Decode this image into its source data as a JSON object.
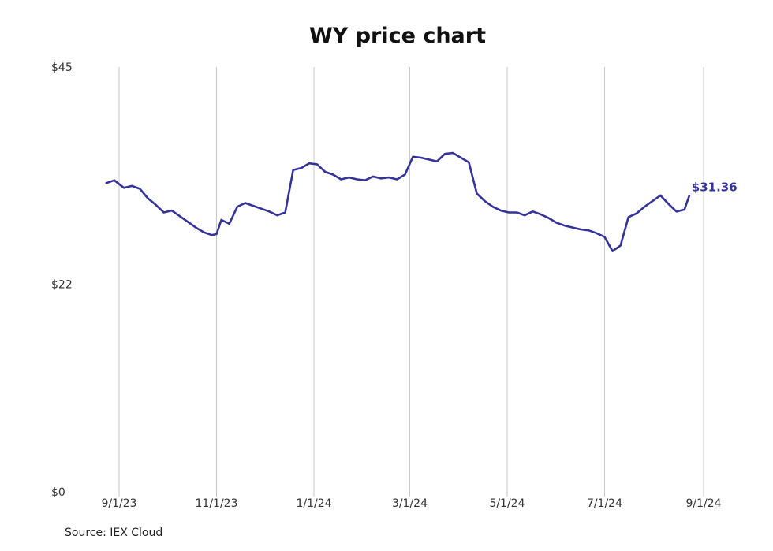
{
  "chart_data": {
    "type": "line",
    "title": "WY price chart",
    "source": "Source: IEX Cloud",
    "ylim": [
      0,
      45
    ],
    "y_ticks": [
      {
        "value": 0,
        "label": "$0"
      },
      {
        "value": 22,
        "label": "$22"
      },
      {
        "value": 45,
        "label": "$45"
      }
    ],
    "x_ticks": [
      {
        "date": "2023-09-01",
        "label": "9/1/23"
      },
      {
        "date": "2023-11-01",
        "label": "11/1/23"
      },
      {
        "date": "2024-01-01",
        "label": "1/1/24"
      },
      {
        "date": "2024-03-01",
        "label": "3/1/24"
      },
      {
        "date": "2024-05-01",
        "label": "5/1/24"
      },
      {
        "date": "2024-07-01",
        "label": "7/1/24"
      },
      {
        "date": "2024-09-01",
        "label": "9/1/24"
      }
    ],
    "grid": "vertical",
    "line_color": "#33339a",
    "end_label": "$31.36",
    "series": [
      {
        "x": [
          "2023-08-24",
          "2023-08-29",
          "2023-09-04",
          "2023-09-09",
          "2023-09-14",
          "2023-09-19",
          "2023-09-24",
          "2023-09-29",
          "2023-10-04",
          "2023-10-09",
          "2023-10-14",
          "2023-10-19",
          "2023-10-24",
          "2023-10-29",
          "2023-11-01",
          "2023-11-04",
          "2023-11-09",
          "2023-11-14",
          "2023-11-19",
          "2023-11-24",
          "2023-11-29",
          "2023-12-04",
          "2023-12-09",
          "2023-12-14",
          "2023-12-19",
          "2023-12-24",
          "2023-12-29",
          "2024-01-03",
          "2024-01-08",
          "2024-01-13",
          "2024-01-18",
          "2024-01-23",
          "2024-01-28",
          "2024-02-02",
          "2024-02-07",
          "2024-02-12",
          "2024-02-17",
          "2024-02-22",
          "2024-02-27",
          "2024-03-03",
          "2024-03-08",
          "2024-03-13",
          "2024-03-18",
          "2024-03-23",
          "2024-03-28",
          "2024-04-02",
          "2024-04-07",
          "2024-04-12",
          "2024-04-17",
          "2024-04-22",
          "2024-04-27",
          "2024-05-02",
          "2024-05-07",
          "2024-05-12",
          "2024-05-17",
          "2024-05-22",
          "2024-05-27",
          "2024-06-01",
          "2024-06-06",
          "2024-06-11",
          "2024-06-16",
          "2024-06-21",
          "2024-06-26",
          "2024-07-01",
          "2024-07-06",
          "2024-07-11",
          "2024-07-16",
          "2024-07-21",
          "2024-07-26",
          "2024-07-31",
          "2024-08-05",
          "2024-08-10",
          "2024-08-15",
          "2024-08-20",
          "2024-08-23"
        ],
        "values": [
          32.7,
          33.0,
          32.2,
          32.4,
          32.1,
          31.1,
          30.4,
          29.6,
          29.8,
          29.2,
          28.6,
          28.0,
          27.5,
          27.2,
          27.3,
          28.8,
          28.4,
          30.2,
          30.6,
          30.3,
          30.0,
          29.7,
          29.3,
          29.6,
          34.1,
          34.3,
          34.8,
          34.7,
          33.9,
          33.6,
          33.1,
          33.3,
          33.1,
          33.0,
          33.4,
          33.2,
          33.3,
          33.1,
          33.6,
          35.5,
          35.4,
          35.2,
          35.0,
          35.8,
          35.9,
          35.4,
          34.9,
          31.6,
          30.8,
          30.2,
          29.8,
          29.6,
          29.6,
          29.3,
          29.7,
          29.4,
          29.0,
          28.5,
          28.2,
          28.0,
          27.8,
          27.7,
          27.4,
          27.0,
          25.5,
          26.1,
          29.1,
          29.5,
          30.2,
          30.8,
          31.4,
          30.5,
          29.7,
          29.9,
          31.36
        ]
      }
    ]
  }
}
